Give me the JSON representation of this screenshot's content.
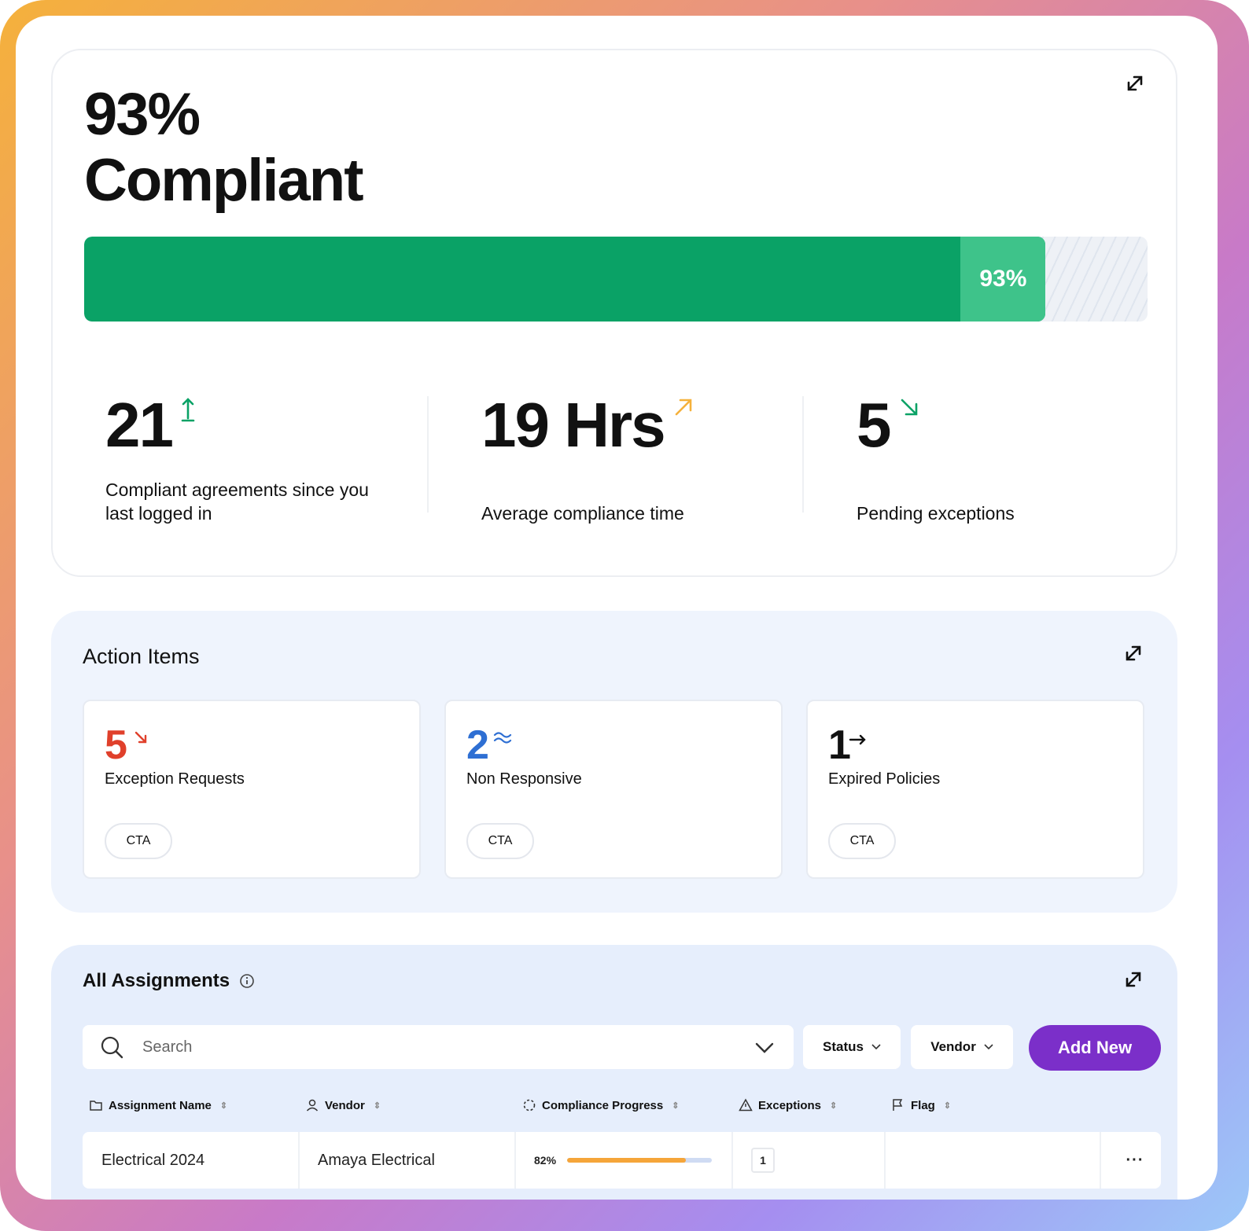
{
  "summary": {
    "headline": "93%\nCompliant",
    "progress_percent": 93,
    "progress_label": "93%",
    "stats": [
      {
        "value": "21",
        "trend_icon": "arrow-up-icon",
        "trend_color": "#0aa266",
        "label": "Compliant agreements since you last logged in"
      },
      {
        "value": "19 Hrs",
        "trend_icon": "arrow-up-right-icon",
        "trend_color": "#f5b13b",
        "label": "Average compliance time"
      },
      {
        "value": "5",
        "trend_icon": "arrow-down-right-icon",
        "trend_color": "#0aa266",
        "label": "Pending exceptions"
      }
    ]
  },
  "action_items": {
    "title": "Action Items",
    "items": [
      {
        "value": "5",
        "color": "#e0402b",
        "trend_icon": "arrow-down-right-icon",
        "label": "Exception Requests",
        "cta": "CTA"
      },
      {
        "value": "2",
        "color": "#2e6fd3",
        "trend_icon": "wave-icon",
        "label": "Non Responsive",
        "cta": "CTA"
      },
      {
        "value": "1",
        "color": "#111111",
        "trend_icon": "arrow-right-icon",
        "label": "Expired Policies",
        "cta": "CTA"
      }
    ]
  },
  "assignments": {
    "title": "All Assignments",
    "search_placeholder": "Search",
    "filters": {
      "status": "Status",
      "vendor": "Vendor"
    },
    "add_label": "Add New",
    "columns": [
      "Assignment Name",
      "Vendor",
      "Compliance Progress",
      "Exceptions",
      "Flag"
    ],
    "rows": [
      {
        "name": "Electrical 2024",
        "vendor": "Amaya Electrical",
        "progress_label": "82%",
        "progress_percent": 82,
        "exceptions": "1",
        "flag": ""
      }
    ]
  },
  "colors": {
    "accent": "#7b2fc9",
    "success": "#0aa266"
  }
}
